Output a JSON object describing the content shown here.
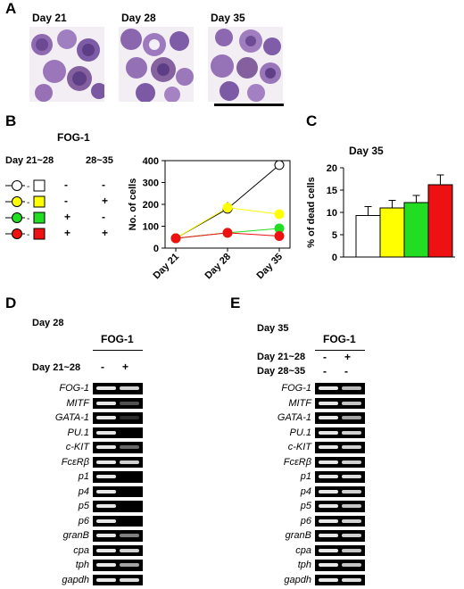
{
  "panels": {
    "a": "A",
    "b": "B",
    "c": "C",
    "d": "D",
    "e": "E"
  },
  "panel_a": {
    "days": [
      "Day 21",
      "Day 28",
      "Day 35"
    ]
  },
  "panel_b": {
    "title": "FOG-1",
    "col1": "Day 21~28",
    "col2": "28~35",
    "legend": [
      {
        "color": "#ffffff",
        "c1": "-",
        "c2": "-"
      },
      {
        "color": "#ffff00",
        "c1": "-",
        "c2": "+"
      },
      {
        "color": "#22dd22",
        "c1": "+",
        "c2": "-"
      },
      {
        "color": "#ee1111",
        "c1": "+",
        "c2": "+"
      }
    ]
  },
  "chart_data": [
    {
      "type": "line",
      "ylabel": "No. of cells",
      "categories": [
        "Day 21",
        "Day 28",
        "Day 35"
      ],
      "ylim": [
        0,
        400
      ],
      "yticks": [
        0,
        100,
        200,
        300,
        400
      ],
      "series": [
        {
          "color": "#ffffff",
          "values": [
            45,
            180,
            380
          ]
        },
        {
          "color": "#ffff00",
          "values": [
            45,
            185,
            155
          ]
        },
        {
          "color": "#22dd22",
          "values": [
            45,
            70,
            90
          ]
        },
        {
          "color": "#ee1111",
          "values": [
            45,
            70,
            55
          ]
        }
      ]
    },
    {
      "type": "bar",
      "title": "Day 35",
      "ylabel": "% of dead cells",
      "ylim": [
        0,
        20
      ],
      "yticks": [
        0,
        5,
        10,
        15,
        20
      ],
      "series": [
        {
          "color": "#ffffff",
          "value": 9.3,
          "err": 2.0
        },
        {
          "color": "#ffff00",
          "value": 11.0,
          "err": 1.7
        },
        {
          "color": "#22dd22",
          "value": 12.2,
          "err": 1.6
        },
        {
          "color": "#ee1111",
          "value": 16.2,
          "err": 2.2
        }
      ]
    }
  ],
  "panel_d": {
    "day": "Day 28",
    "header": "FOG-1",
    "row_label": "Day 21~28",
    "signs": [
      "-",
      "+"
    ]
  },
  "panel_e": {
    "day": "Day 35",
    "header": "FOG-1",
    "row1_label": "Day 21~28",
    "row1_signs": [
      "-",
      "+"
    ],
    "row2_label": "Day 28~35",
    "row2_signs": [
      "-",
      "-"
    ]
  },
  "genes_d": [
    "FOG-1",
    "MITF",
    "GATA-1",
    "PU.1",
    "c-KIT",
    "FcεRβ",
    "p1",
    "p4",
    "p5",
    "p6",
    "granB",
    "cpa",
    "tph",
    "gapdh"
  ],
  "genes_e": [
    "FOG-1",
    "MITF",
    "GATA-1",
    "PU.1",
    "c-KIT",
    "FcεRβ",
    "p1",
    "p4",
    "p5",
    "p6",
    "granB",
    "cpa",
    "tph",
    "gapdh"
  ]
}
